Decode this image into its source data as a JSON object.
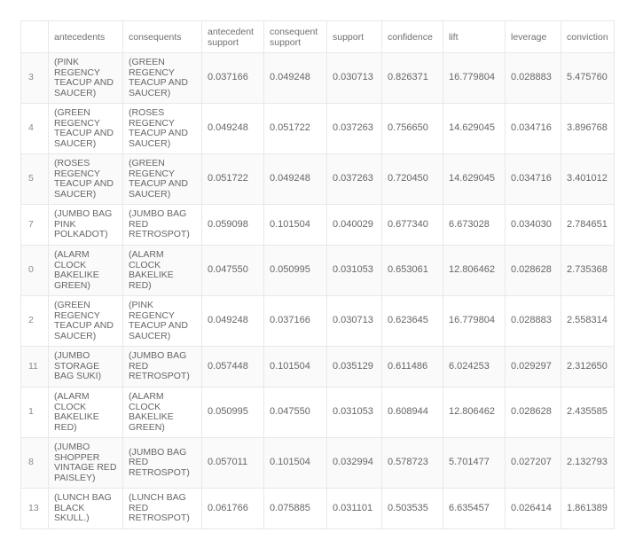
{
  "table": {
    "columns": [
      "",
      "antecedents",
      "consequents",
      "antecedent support",
      "consequent support",
      "support",
      "confidence",
      "lift",
      "leverage",
      "conviction"
    ],
    "rows": [
      {
        "idx": "3",
        "antecedents": "(PINK REGENCY TEACUP AND SAUCER)",
        "consequents": "(GREEN REGENCY TEACUP AND SAUCER)",
        "antecedent_support": "0.037166",
        "consequent_support": "0.049248",
        "support": "0.030713",
        "confidence": "0.826371",
        "lift": "16.779804",
        "leverage": "0.028883",
        "conviction": "5.475760"
      },
      {
        "idx": "4",
        "antecedents": "(GREEN REGENCY TEACUP AND SAUCER)",
        "consequents": "(ROSES REGENCY TEACUP AND SAUCER)",
        "antecedent_support": "0.049248",
        "consequent_support": "0.051722",
        "support": "0.037263",
        "confidence": "0.756650",
        "lift": "14.629045",
        "leverage": "0.034716",
        "conviction": "3.896768"
      },
      {
        "idx": "5",
        "antecedents": "(ROSES REGENCY TEACUP AND SAUCER)",
        "consequents": "(GREEN REGENCY TEACUP AND SAUCER)",
        "antecedent_support": "0.051722",
        "consequent_support": "0.049248",
        "support": "0.037263",
        "confidence": "0.720450",
        "lift": "14.629045",
        "leverage": "0.034716",
        "conviction": "3.401012"
      },
      {
        "idx": "7",
        "antecedents": "(JUMBO BAG PINK POLKADOT)",
        "consequents": "(JUMBO BAG RED RETROSPOT)",
        "antecedent_support": "0.059098",
        "consequent_support": "0.101504",
        "support": "0.040029",
        "confidence": "0.677340",
        "lift": "6.673028",
        "leverage": "0.034030",
        "conviction": "2.784651"
      },
      {
        "idx": "0",
        "antecedents": "(ALARM CLOCK BAKELIKE GREEN)",
        "consequents": "(ALARM CLOCK BAKELIKE RED)",
        "antecedent_support": "0.047550",
        "consequent_support": "0.050995",
        "support": "0.031053",
        "confidence": "0.653061",
        "lift": "12.806462",
        "leverage": "0.028628",
        "conviction": "2.735368"
      },
      {
        "idx": "2",
        "antecedents": "(GREEN REGENCY TEACUP AND SAUCER)",
        "consequents": "(PINK REGENCY TEACUP AND SAUCER)",
        "antecedent_support": "0.049248",
        "consequent_support": "0.037166",
        "support": "0.030713",
        "confidence": "0.623645",
        "lift": "16.779804",
        "leverage": "0.028883",
        "conviction": "2.558314"
      },
      {
        "idx": "11",
        "antecedents": "(JUMBO STORAGE BAG SUKI)",
        "consequents": "(JUMBO BAG RED RETROSPOT)",
        "antecedent_support": "0.057448",
        "consequent_support": "0.101504",
        "support": "0.035129",
        "confidence": "0.611486",
        "lift": "6.024253",
        "leverage": "0.029297",
        "conviction": "2.312650"
      },
      {
        "idx": "1",
        "antecedents": "(ALARM CLOCK BAKELIKE RED)",
        "consequents": "(ALARM CLOCK BAKELIKE GREEN)",
        "antecedent_support": "0.050995",
        "consequent_support": "0.047550",
        "support": "0.031053",
        "confidence": "0.608944",
        "lift": "12.806462",
        "leverage": "0.028628",
        "conviction": "2.435585"
      },
      {
        "idx": "8",
        "antecedents": "(JUMBO SHOPPER VINTAGE RED PAISLEY)",
        "consequents": "(JUMBO BAG RED RETROSPOT)",
        "antecedent_support": "0.057011",
        "consequent_support": "0.101504",
        "support": "0.032994",
        "confidence": "0.578723",
        "lift": "5.701477",
        "leverage": "0.027207",
        "conviction": "2.132793"
      },
      {
        "idx": "13",
        "antecedents": "(LUNCH BAG BLACK SKULL.)",
        "consequents": "(LUNCH BAG RED RETROSPOT)",
        "antecedent_support": "0.061766",
        "consequent_support": "0.075885",
        "support": "0.031101",
        "confidence": "0.503535",
        "lift": "6.635457",
        "leverage": "0.026414",
        "conviction": "1.861389"
      }
    ]
  },
  "colors": {
    "text": "#666666",
    "border": "#e8e8e8",
    "row_alt": "#fafafa"
  }
}
